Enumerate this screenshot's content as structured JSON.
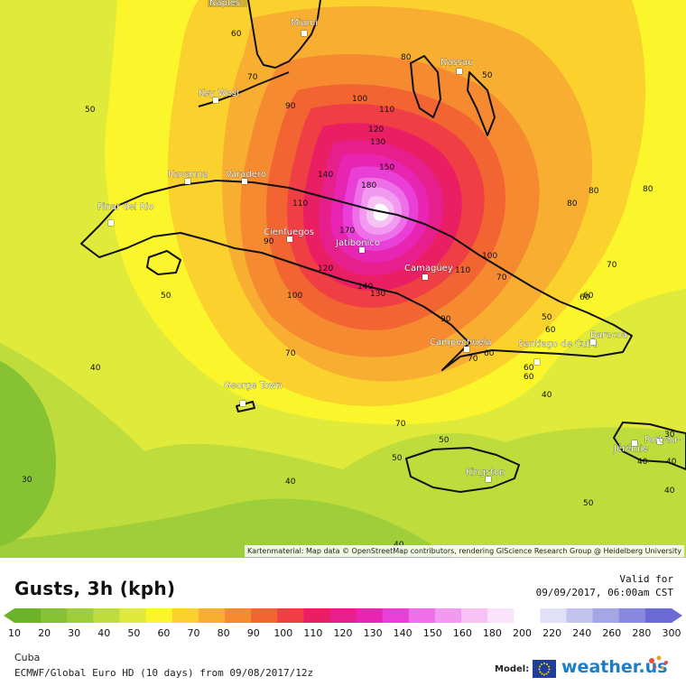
{
  "map": {
    "attribution": "Kartenmaterial: Map data © OpenStreetMap contributors, rendering GIScience Research Group @ Heidelberg University",
    "cities": [
      {
        "id": "naples",
        "label": "Naples"
      },
      {
        "id": "miami",
        "label": "Miami"
      },
      {
        "id": "nassau",
        "label": "Nassau"
      },
      {
        "id": "key-west",
        "label": "Key West"
      },
      {
        "id": "havanna",
        "label": "Havanna"
      },
      {
        "id": "varadero",
        "label": "Varadero"
      },
      {
        "id": "pinar-del-rio",
        "label": "Pinar del Rio"
      },
      {
        "id": "cienfuegos",
        "label": "Cienfuegos"
      },
      {
        "id": "jatibonico",
        "label": "Jatibonico"
      },
      {
        "id": "camaguey",
        "label": "Camagüey"
      },
      {
        "id": "campechuela",
        "label": "Campechuela"
      },
      {
        "id": "santiago-de-cuba",
        "label": "Santiago de Cuba"
      },
      {
        "id": "baracoa",
        "label": "Baracoa"
      },
      {
        "id": "george-town",
        "label": "George Town"
      },
      {
        "id": "kingston",
        "label": "Kingston"
      },
      {
        "id": "jeremie",
        "label": "Jérémie"
      },
      {
        "id": "port-au-prince",
        "label": "Port-au-"
      }
    ],
    "contour_labels": [
      "60",
      "70",
      "50",
      "90",
      "100",
      "110",
      "120",
      "130",
      "140",
      "150",
      "180",
      "170",
      "110",
      "120",
      "140",
      "130",
      "100",
      "90",
      "80",
      "80",
      "80",
      "50",
      "70",
      "100",
      "110",
      "70",
      "60",
      "50",
      "60",
      "90",
      "60",
      "70",
      "50",
      "70",
      "50",
      "60",
      "70",
      "80",
      "40",
      "30",
      "40",
      "40",
      "50",
      "40",
      "30",
      "40",
      "40",
      "60",
      "60",
      "50",
      "40"
    ]
  },
  "legend": {
    "title": "Gusts, 3h (kph)",
    "valid_for_label": "Valid for",
    "valid_time": "09/09/2017, 06:00am CST",
    "ticks": [
      "10",
      "20",
      "30",
      "40",
      "50",
      "60",
      "70",
      "80",
      "90",
      "100",
      "110",
      "120",
      "130",
      "140",
      "150",
      "160",
      "180",
      "200",
      "220",
      "240",
      "260",
      "280",
      "300"
    ],
    "colors": [
      "#6db32a",
      "#86c232",
      "#9ece3a",
      "#bedd3c",
      "#dfea3a",
      "#fbf52c",
      "#fbd12e",
      "#f8ae31",
      "#f68a31",
      "#f36433",
      "#ef3f44",
      "#ea1f63",
      "#e71f8c",
      "#e824b2",
      "#ea3fd6",
      "#ef6fe8",
      "#f29af0",
      "#f6c2f4",
      "#f9e3fb",
      "#ffffff",
      "#e0e0f6",
      "#c3c4ee",
      "#a5a6e6",
      "#8889de",
      "#6b6bd6"
    ]
  },
  "footer": {
    "region": "Cuba",
    "model_run": "ECMWF/Global Euro HD (10 days) from 09/08/2017/12z",
    "model_label": "Model:",
    "brand": "weather.us"
  }
}
